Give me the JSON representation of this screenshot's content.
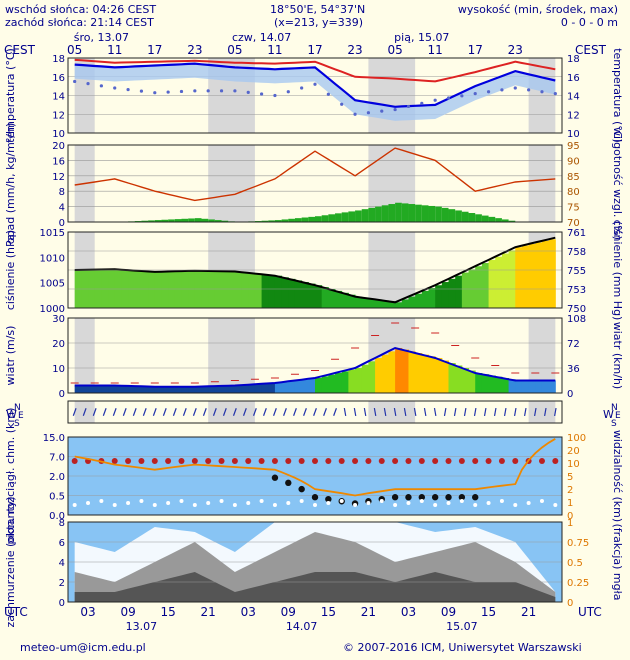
{
  "header": {
    "sunrise": "wschód słońca: 04:26 CEST",
    "sunset": "zachód słońca: 21:14 CEST",
    "coords": "18°50'E, 54°37'N",
    "grid": "(x=213, y=339)",
    "height_label": "wysokość (min, środek, max)",
    "height_values": "0 - 0 - 0 m"
  },
  "footer": {
    "email": "meteo-um@icm.edu.pl",
    "copyright": "© 2007-2016 ICM, Uniwersytet Warszawski"
  },
  "colors": {
    "background": "#fffde8",
    "text": "#00008b",
    "temperature_max": "#dd2222",
    "temperature_mean": "#0000dd",
    "humidity_line": "#cc3300",
    "precip_bar": "#22aa22",
    "pressure_low": "#006600",
    "pressure_high": "#ffcc00",
    "visibility_line": "#ee8800",
    "cloud_bg": "#88c4f4",
    "grey_night_band": "#d8d8d8"
  },
  "top_axis": {
    "timezone_left": "CEST",
    "timezone_right": "CEST",
    "days": [
      "śro, 13.07",
      "czw, 14.07",
      "pią, 15.07"
    ],
    "hours": [
      "05",
      "11",
      "17",
      "23",
      "05",
      "11",
      "17",
      "23",
      "05",
      "11",
      "17",
      "23"
    ]
  },
  "bottom_axis": {
    "timezone": "UTC",
    "timezone_right": "UTC",
    "hours": [
      "03",
      "09",
      "15",
      "21",
      "03",
      "09",
      "15",
      "21",
      "03",
      "09",
      "15",
      "21"
    ],
    "dates": [
      "13.07",
      "14.07",
      "15.07"
    ]
  },
  "chart_data": [
    {
      "type": "line",
      "panel": "temperature",
      "ylabel_left": "temperatura (°C)",
      "ylabel_right": "temperatura (°C)",
      "ylim": [
        10,
        18
      ],
      "yticks": [
        "10",
        "12",
        "14",
        "16",
        "18"
      ],
      "hours_from_start": [
        0,
        6,
        12,
        18,
        24,
        30,
        36,
        42,
        48,
        54,
        60,
        66,
        72
      ],
      "series": [
        {
          "values": [
            17.8,
            17.5,
            17.6,
            17.7,
            17.5,
            17.4,
            17.6,
            16.0,
            15.8,
            15.5,
            16.5,
            17.6,
            16.8
          ]
        },
        {
          "values": [
            17.3,
            17.0,
            17.2,
            17.4,
            17.0,
            16.8,
            17.0,
            13.5,
            12.8,
            13.0,
            15.0,
            16.6,
            15.6
          ]
        },
        {
          "values": [
            15.5,
            14.8,
            14.3,
            14.5,
            14.5,
            14.0,
            15.2,
            12.0,
            12.5,
            13.5,
            14.2,
            14.8,
            14.2
          ]
        }
      ]
    },
    {
      "type": "bar",
      "panel": "precipitation",
      "ylabel_left": "opad (mm/h, kg/m²/h)",
      "ylabel_right": "wilgotność wzgl. (%)",
      "ylim": [
        0,
        20
      ],
      "yticks": [
        "0",
        "4",
        "8",
        "12",
        "16",
        "20"
      ],
      "ylim_right": [
        70,
        95
      ],
      "yticks_right": [
        "70",
        "75",
        "80",
        "85",
        "90",
        "95"
      ],
      "hours_from_start": [
        0,
        6,
        12,
        18,
        24,
        30,
        36,
        42,
        48,
        54,
        60,
        66,
        72
      ],
      "series": [
        {
          "values": [
            0,
            0,
            0.5,
            1,
            0,
            0.5,
            1.5,
            3,
            5,
            4,
            2,
            0,
            0
          ]
        },
        {
          "values": [
            82,
            84,
            80,
            77,
            79,
            84,
            93,
            85,
            94,
            90,
            80,
            83,
            84
          ]
        }
      ]
    },
    {
      "type": "area",
      "panel": "pressure",
      "ylabel_left": "ciśnienie (hPa)",
      "ylabel_right": "ciśnienie (mm Hg)",
      "ylim": [
        1000,
        1020
      ],
      "yticks": [
        "1000",
        "1005",
        "1010",
        "1015"
      ],
      "yticks_right": [
        "750",
        "753",
        "755",
        "758",
        "761"
      ],
      "hours_from_start": [
        0,
        6,
        12,
        18,
        24,
        30,
        36,
        42,
        48,
        54,
        60,
        66,
        72
      ],
      "values": [
        1010,
        1010.2,
        1009.5,
        1009.8,
        1009.6,
        1008.5,
        1006,
        1003,
        1001.5,
        1006,
        1011,
        1016,
        1018.5
      ]
    },
    {
      "type": "area",
      "panel": "wind",
      "ylabel_left": "wiatr (m/s)",
      "ylabel_right": "wiatr (km/h)",
      "ylim": [
        0,
        30
      ],
      "yticks": [
        "0",
        "10",
        "20",
        "30"
      ],
      "yticks_right": [
        "0",
        "36",
        "72",
        "108"
      ],
      "hours_from_start": [
        0,
        6,
        12,
        18,
        24,
        30,
        36,
        42,
        48,
        54,
        60,
        66,
        72
      ],
      "series": [
        {
          "values": [
            3,
            3,
            2.5,
            2.5,
            3,
            4,
            6,
            10,
            18,
            14,
            8,
            5,
            5
          ]
        },
        {
          "values": [
            4,
            4,
            4,
            4,
            5,
            6,
            9,
            18,
            28,
            24,
            14,
            8,
            8
          ]
        }
      ]
    },
    {
      "type": "scatter",
      "panel": "wind_direction",
      "label_left": "W E S N",
      "label_right": "W E S N"
    },
    {
      "type": "line",
      "panel": "cloud_base_visibility",
      "ylabel_left": "pion. rozciągł. chm. (km)",
      "ylabel_right": "widzialność (km)",
      "yticks": [
        "0.0",
        "0.5",
        "2.0",
        "7.0",
        "15.0"
      ],
      "yticks_right": [
        "0",
        "1",
        "2",
        "5",
        "10",
        "20",
        "100"
      ],
      "hours_from_start": [
        0,
        6,
        12,
        18,
        24,
        30,
        36,
        42,
        48,
        54,
        60,
        66,
        72
      ],
      "values": [
        7,
        5,
        4,
        5,
        4.5,
        4,
        1.5,
        1,
        1.5,
        1.5,
        1.5,
        2,
        14
      ]
    },
    {
      "type": "area",
      "panel": "cloudiness",
      "ylabel_left": "zachmurzenie (oktanty)",
      "ylabel_right": "(frakcja) mgła",
      "ylim": [
        0,
        8
      ],
      "yticks": [
        "0",
        "2",
        "4",
        "6",
        "8"
      ],
      "yticks_right": [
        "0",
        "0.25",
        "0.5",
        "0.75",
        "1"
      ],
      "hours_from_start": [
        0,
        6,
        12,
        18,
        24,
        30,
        36,
        42,
        48,
        54,
        60,
        66,
        72
      ],
      "series": [
        {
          "values": [
            6,
            5,
            7.5,
            7,
            5,
            8,
            8,
            8,
            8,
            7,
            7.5,
            6,
            1
          ]
        },
        {
          "values": [
            3,
            2,
            4,
            6,
            3,
            5,
            7,
            6,
            4,
            5,
            6,
            4,
            1
          ]
        },
        {
          "values": [
            1,
            1,
            2,
            3,
            1,
            2,
            3,
            3,
            2,
            3,
            2,
            2,
            0.5
          ]
        }
      ]
    }
  ]
}
